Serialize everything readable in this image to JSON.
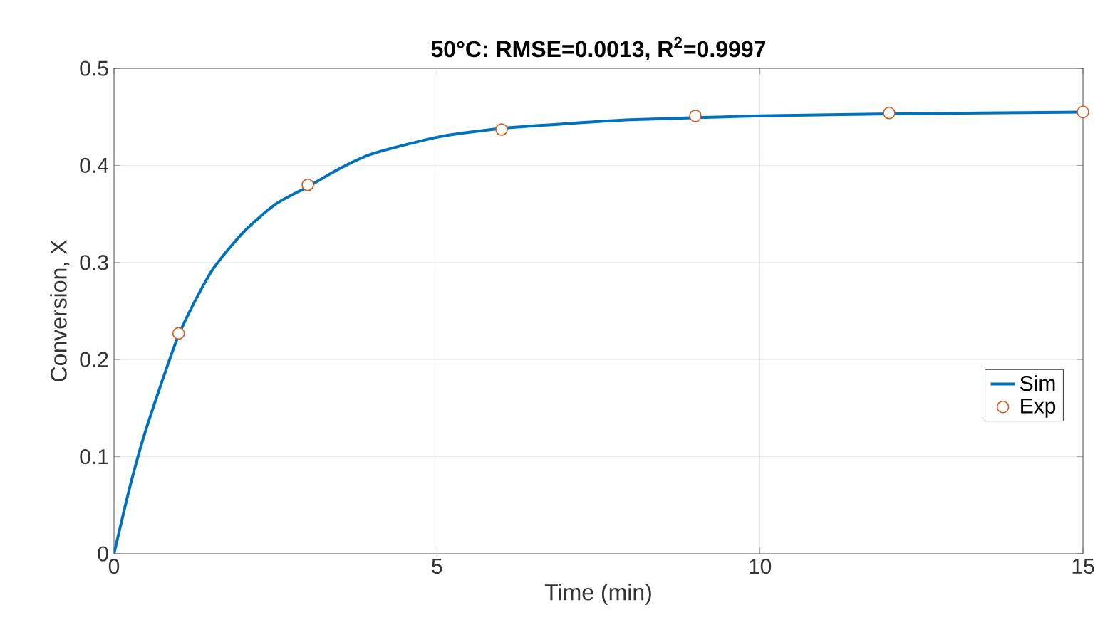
{
  "chart_data": {
    "type": "line",
    "title": "**50°C: RMSE=0.0013, R$^{2}$=0.9997**",
    "xlabel": "Time (min)",
    "ylabel": "Conversion, X",
    "xlim": [
      0,
      15
    ],
    "ylim": [
      0,
      0.5
    ],
    "xticks": [
      0,
      5,
      10,
      15
    ],
    "yticks": [
      0,
      0.1,
      0.2,
      0.3,
      0.4,
      0.5
    ],
    "grid": true,
    "legend": "right",
    "series": [
      {
        "name": "Sim",
        "color": "#0072bd",
        "marker": "none",
        "line_style": "solid",
        "x": [
          0,
          0.25,
          0.5,
          1,
          1.5,
          2,
          2.5,
          3,
          3.5,
          4,
          5,
          6,
          7,
          8,
          10,
          12,
          15
        ],
        "values": [
          0,
          0.07,
          0.129,
          0.225,
          0.29,
          0.331,
          0.36,
          0.378,
          0.397,
          0.412,
          0.429,
          0.438,
          0.443,
          0.447,
          0.451,
          0.453,
          0.455
        ]
      },
      {
        "name": "Exp",
        "type": "scatter",
        "color": "#d95319",
        "marker": "circle",
        "x": [
          1,
          3,
          6,
          9,
          12,
          15
        ],
        "values": [
          0.227,
          0.38,
          0.437,
          0.451,
          0.454,
          0.455
        ]
      }
    ]
  }
}
